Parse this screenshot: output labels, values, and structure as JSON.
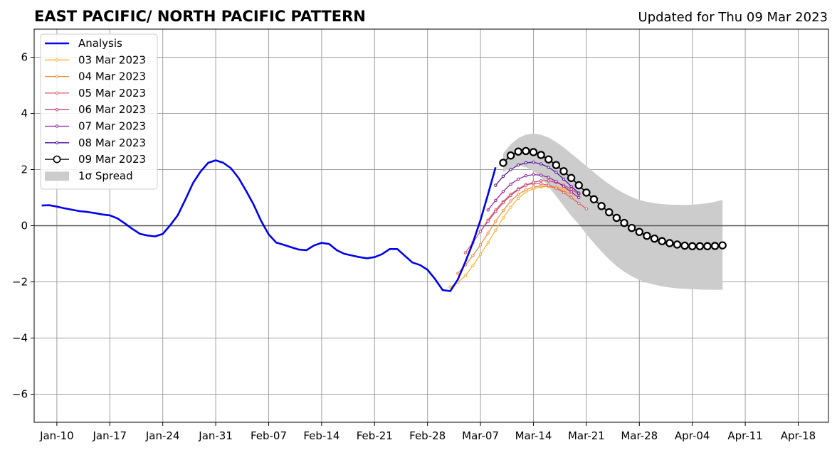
{
  "header": {
    "title": "EAST PACIFIC/ NORTH PACIFIC PATTERN",
    "updated": "Updated for Thu 09 Mar 2023"
  },
  "chart_data": {
    "type": "line",
    "title": "EAST PACIFIC/ NORTH PACIFIC PATTERN",
    "xlabel": "",
    "ylabel": "",
    "xlim": [
      "2023-01-07",
      "2023-04-22"
    ],
    "ylim": [
      -7,
      7
    ],
    "grid": true,
    "legend_position": "top-left",
    "x_ticks": [
      {
        "date": "2023-01-10",
        "label": "Jan-10"
      },
      {
        "date": "2023-01-17",
        "label": "Jan-17"
      },
      {
        "date": "2023-01-24",
        "label": "Jan-24"
      },
      {
        "date": "2023-01-31",
        "label": "Jan-31"
      },
      {
        "date": "2023-02-07",
        "label": "Feb-07"
      },
      {
        "date": "2023-02-14",
        "label": "Feb-14"
      },
      {
        "date": "2023-02-21",
        "label": "Feb-21"
      },
      {
        "date": "2023-02-28",
        "label": "Feb-28"
      },
      {
        "date": "2023-03-07",
        "label": "Mar-07"
      },
      {
        "date": "2023-03-14",
        "label": "Mar-14"
      },
      {
        "date": "2023-03-21",
        "label": "Mar-21"
      },
      {
        "date": "2023-03-28",
        "label": "Mar-28"
      },
      {
        "date": "2023-04-04",
        "label": "Apr-04"
      },
      {
        "date": "2023-04-11",
        "label": "Apr-11"
      },
      {
        "date": "2023-04-18",
        "label": "Apr-18"
      }
    ],
    "y_ticks": [
      {
        "value": 6,
        "label": "6"
      },
      {
        "value": 4,
        "label": "4"
      },
      {
        "value": 2,
        "label": "2"
      },
      {
        "value": 0,
        "label": "0"
      },
      {
        "value": -2,
        "label": "−2"
      },
      {
        "value": -4,
        "label": "−4"
      },
      {
        "value": -6,
        "label": "−6"
      }
    ],
    "analysis": {
      "name": "Analysis",
      "color": "#0000ee",
      "points": [
        [
          "2023-01-08",
          0.72
        ],
        [
          "2023-01-09",
          0.73
        ],
        [
          "2023-01-10",
          0.68
        ],
        [
          "2023-01-11",
          0.62
        ],
        [
          "2023-01-12",
          0.57
        ],
        [
          "2023-01-13",
          0.52
        ],
        [
          "2023-01-14",
          0.49
        ],
        [
          "2023-01-15",
          0.45
        ],
        [
          "2023-01-16",
          0.4
        ],
        [
          "2023-01-17",
          0.37
        ],
        [
          "2023-01-18",
          0.26
        ],
        [
          "2023-01-19",
          0.08
        ],
        [
          "2023-01-20",
          -0.12
        ],
        [
          "2023-01-21",
          -0.29
        ],
        [
          "2023-01-22",
          -0.35
        ],
        [
          "2023-01-23",
          -0.38
        ],
        [
          "2023-01-24",
          -0.29
        ],
        [
          "2023-01-25",
          0.02
        ],
        [
          "2023-01-26",
          0.38
        ],
        [
          "2023-01-27",
          0.94
        ],
        [
          "2023-01-28",
          1.52
        ],
        [
          "2023-01-29",
          1.93
        ],
        [
          "2023-01-30",
          2.24
        ],
        [
          "2023-01-31",
          2.33
        ],
        [
          "2023-02-01",
          2.24
        ],
        [
          "2023-02-02",
          2.05
        ],
        [
          "2023-02-03",
          1.71
        ],
        [
          "2023-02-04",
          1.25
        ],
        [
          "2023-02-05",
          0.76
        ],
        [
          "2023-02-06",
          0.17
        ],
        [
          "2023-02-07",
          -0.31
        ],
        [
          "2023-02-08",
          -0.6
        ],
        [
          "2023-02-09",
          -0.68
        ],
        [
          "2023-02-10",
          -0.77
        ],
        [
          "2023-02-11",
          -0.85
        ],
        [
          "2023-02-12",
          -0.87
        ],
        [
          "2023-02-13",
          -0.7
        ],
        [
          "2023-02-14",
          -0.61
        ],
        [
          "2023-02-15",
          -0.65
        ],
        [
          "2023-02-16",
          -0.87
        ],
        [
          "2023-02-17",
          -1.0
        ],
        [
          "2023-02-18",
          -1.06
        ],
        [
          "2023-02-19",
          -1.12
        ],
        [
          "2023-02-20",
          -1.16
        ],
        [
          "2023-02-21",
          -1.12
        ],
        [
          "2023-02-22",
          -1.01
        ],
        [
          "2023-02-23",
          -0.83
        ],
        [
          "2023-02-24",
          -0.83
        ],
        [
          "2023-02-25",
          -1.07
        ],
        [
          "2023-02-26",
          -1.31
        ],
        [
          "2023-02-27",
          -1.4
        ],
        [
          "2023-02-28",
          -1.57
        ],
        [
          "2023-03-01",
          -1.9
        ],
        [
          "2023-03-02",
          -2.29
        ],
        [
          "2023-03-03",
          -2.33
        ],
        [
          "2023-03-04",
          -1.92
        ],
        [
          "2023-03-05",
          -1.29
        ],
        [
          "2023-03-06",
          -0.6
        ],
        [
          "2023-03-07",
          0.2
        ],
        [
          "2023-03-08",
          1.12
        ],
        [
          "2023-03-09",
          2.08
        ]
      ]
    },
    "spread": {
      "name": "1σ Spread",
      "color": "#cccccc",
      "x": [
        "2023-03-10",
        "2023-03-11",
        "2023-03-12",
        "2023-03-13",
        "2023-03-14",
        "2023-03-15",
        "2023-03-16",
        "2023-03-17",
        "2023-03-18",
        "2023-03-19",
        "2023-03-20",
        "2023-03-21",
        "2023-03-22",
        "2023-03-23",
        "2023-03-24",
        "2023-03-25",
        "2023-03-26",
        "2023-03-27",
        "2023-03-28",
        "2023-03-29",
        "2023-03-30",
        "2023-03-31",
        "2023-04-01",
        "2023-04-02",
        "2023-04-03",
        "2023-04-04",
        "2023-04-05",
        "2023-04-06",
        "2023-04-07",
        "2023-04-08"
      ],
      "upper": [
        2.58,
        2.9,
        3.12,
        3.24,
        3.28,
        3.24,
        3.14,
        2.98,
        2.79,
        2.57,
        2.35,
        2.12,
        1.9,
        1.68,
        1.48,
        1.3,
        1.15,
        1.02,
        0.92,
        0.85,
        0.8,
        0.77,
        0.75,
        0.74,
        0.74,
        0.75,
        0.77,
        0.8,
        0.85,
        0.92
      ],
      "lower": [
        1.92,
        2.05,
        2.15,
        2.08,
        1.95,
        1.72,
        1.4,
        1.05,
        0.7,
        0.35,
        0.05,
        -0.3,
        -0.62,
        -0.92,
        -1.2,
        -1.44,
        -1.64,
        -1.8,
        -1.93,
        -2.03,
        -2.1,
        -2.16,
        -2.2,
        -2.23,
        -2.25,
        -2.26,
        -2.27,
        -2.28,
        -2.28,
        -2.28
      ]
    },
    "forecasts": [
      {
        "name": "03 Mar 2023",
        "color": "#fcb12c",
        "start": "2023-03-03",
        "values": [
          -2.18,
          -2.02,
          -1.78,
          -1.42,
          -1.02,
          -0.6,
          -0.16,
          0.28,
          0.66,
          0.98,
          1.2,
          1.32,
          1.38,
          1.4,
          1.38,
          1.32,
          1.22
        ]
      },
      {
        "name": "04 Mar 2023",
        "color": "#f3883b",
        "start": "2023-03-04",
        "values": [
          -1.7,
          -1.4,
          -1.06,
          -0.68,
          -0.26,
          0.16,
          0.54,
          0.88,
          1.12,
          1.28,
          1.38,
          1.42,
          1.4,
          1.34,
          1.24,
          1.12
        ]
      },
      {
        "name": "05 Mar 2023",
        "color": "#de5d60",
        "start": "2023-03-05",
        "values": [
          -0.96,
          -0.6,
          -0.2,
          0.2,
          0.56,
          0.86,
          1.12,
          1.32,
          1.46,
          1.5,
          1.5,
          1.44,
          1.34,
          1.18,
          1.0,
          0.8,
          0.6
        ]
      },
      {
        "name": "06 Mar 2023",
        "color": "#c13e80",
        "start": "2023-03-07",
        "values": [
          -0.2,
          0.16,
          0.5,
          0.82,
          1.08,
          1.28,
          1.44,
          1.55,
          1.6,
          1.6,
          1.54,
          1.44,
          1.3,
          1.12
        ]
      },
      {
        "name": "07 Mar 2023",
        "color": "#8e1b9c",
        "start": "2023-03-08",
        "values": [
          0.56,
          0.9,
          1.22,
          1.48,
          1.66,
          1.78,
          1.82,
          1.8,
          1.72,
          1.58,
          1.4,
          1.2,
          1.0
        ]
      },
      {
        "name": "08 Mar 2023",
        "color": "#4c0a9b",
        "start": "2023-03-09",
        "values": [
          1.44,
          1.76,
          2.0,
          2.16,
          2.24,
          2.26,
          2.2,
          2.08,
          1.9,
          1.66,
          1.4,
          1.16
        ]
      },
      {
        "name": "09 Mar 2023",
        "color": "#000000",
        "start": "2023-03-10",
        "values": [
          2.24,
          2.5,
          2.64,
          2.66,
          2.62,
          2.52,
          2.36,
          2.16,
          1.94,
          1.7,
          1.44,
          1.18,
          0.94,
          0.7,
          0.48,
          0.28,
          0.1,
          -0.08,
          -0.22,
          -0.36,
          -0.46,
          -0.55,
          -0.62,
          -0.67,
          -0.71,
          -0.73,
          -0.73,
          -0.73,
          -0.72,
          -0.7
        ]
      }
    ]
  }
}
